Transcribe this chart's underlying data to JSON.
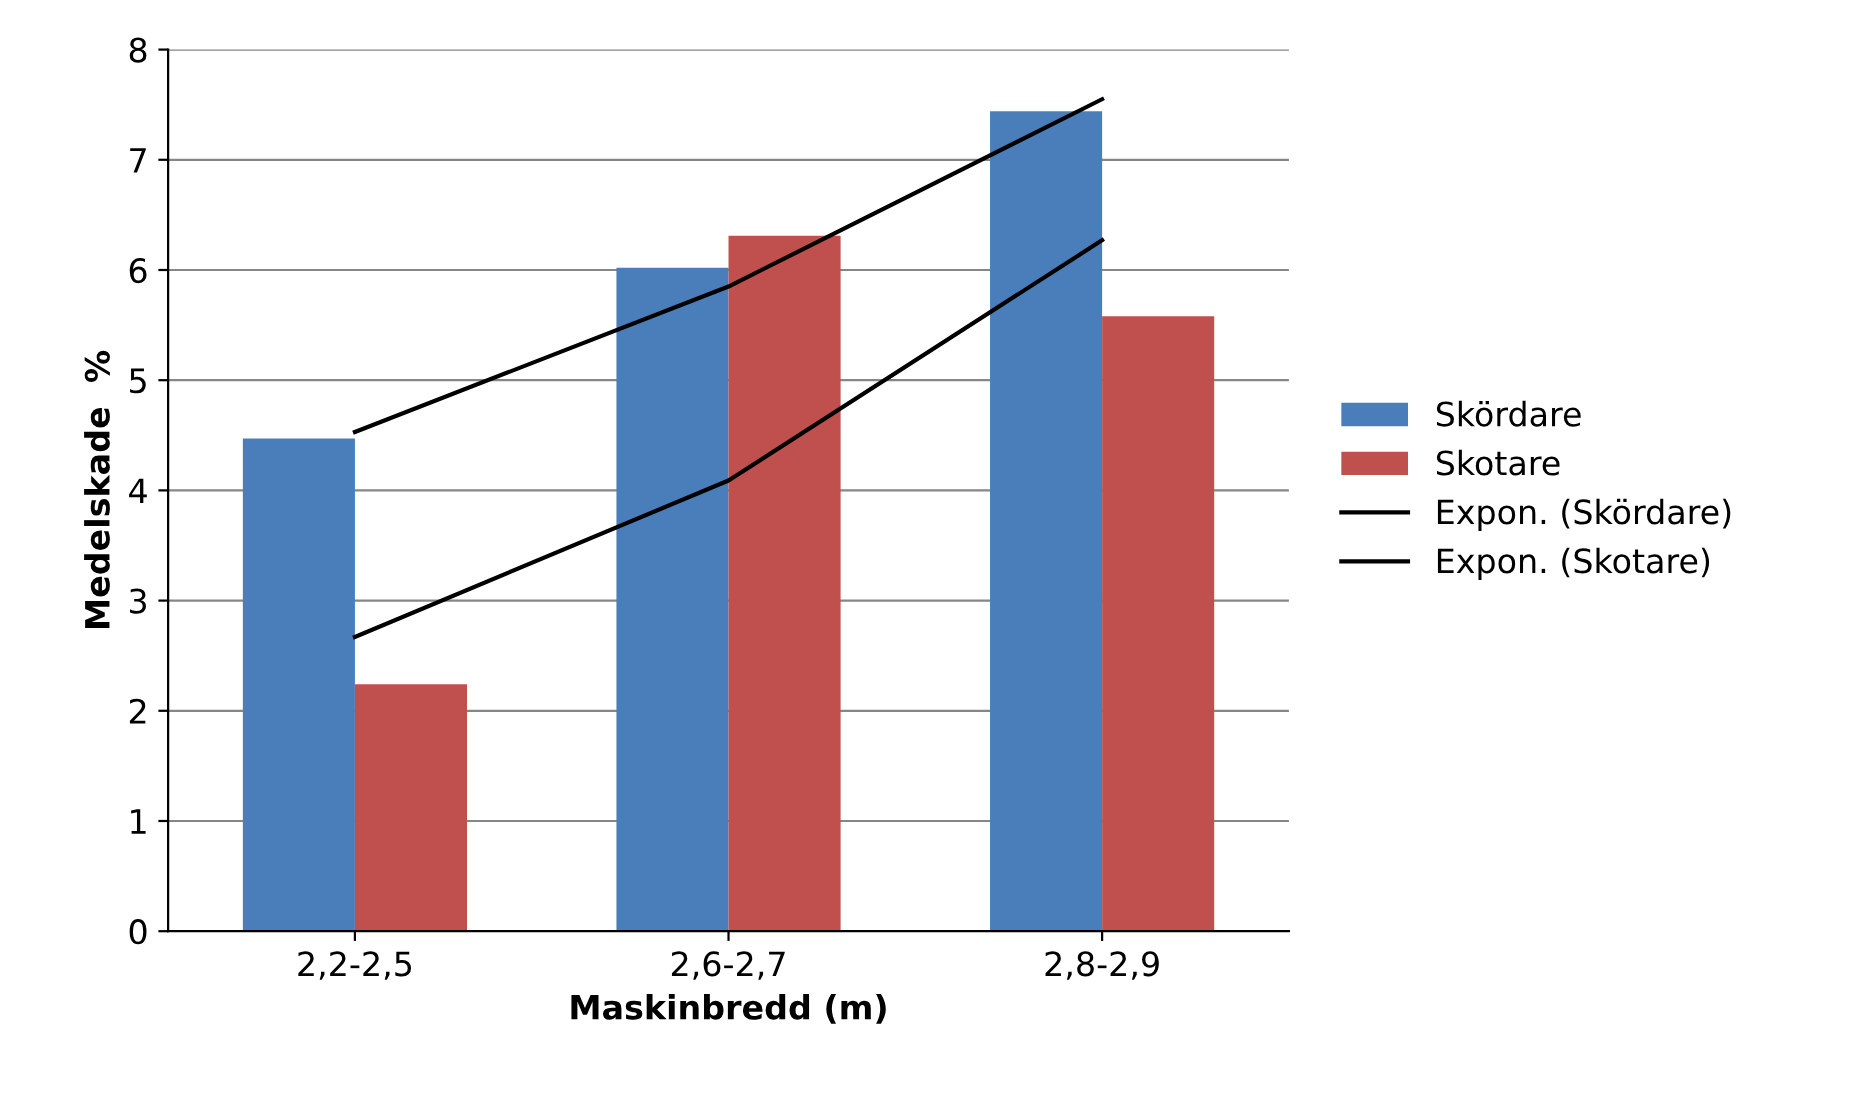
{
  "chart_data": {
    "type": "bar",
    "xlabel": "Maskinbredd (m)",
    "ylabel": "Medelskade  %",
    "categories": [
      "2,2-2,5",
      "2,6-2,7",
      "2,8-2,9"
    ],
    "series": [
      {
        "name": "Skördare",
        "color": "#4a7ebb",
        "values": [
          4.47,
          6.02,
          7.44
        ]
      },
      {
        "name": "Skotare",
        "color": "#c0504d",
        "values": [
          2.24,
          6.31,
          5.58
        ]
      },
      {
        "name": "Expon. (Skördare)",
        "type": "line",
        "color": "#000000",
        "values": [
          4.53,
          5.85,
          7.55
        ]
      },
      {
        "name": "Expon. (Skotare)",
        "type": "line",
        "color": "#000000",
        "values": [
          2.67,
          4.09,
          6.27
        ]
      }
    ],
    "ylim": [
      0,
      8
    ],
    "yticks": [
      0,
      1,
      2,
      3,
      4,
      5,
      6,
      7,
      8
    ],
    "grid": "y",
    "legend": "right"
  }
}
